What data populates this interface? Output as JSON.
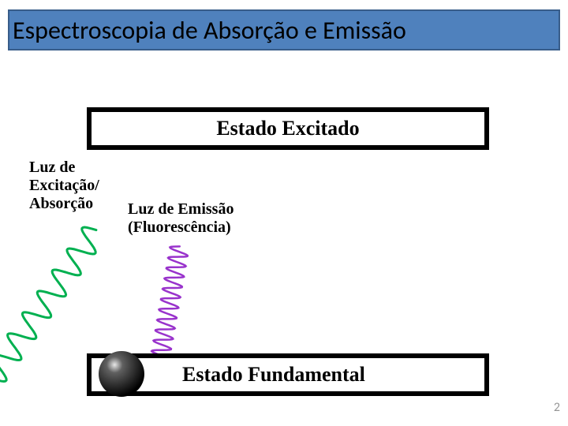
{
  "title": {
    "text": "Espectroscopia de Absorção e Emissão",
    "fontsize": 32,
    "color": "#000000",
    "bar_fill": "#4f81bd",
    "bar_border": "#385d8a"
  },
  "excited_state": {
    "label": "Estado Excitado",
    "fontsize": 26,
    "border_color": "#000000",
    "fill": "#ffffff"
  },
  "ground_state": {
    "label": "Estado Fundamental",
    "fontsize": 26,
    "border_color": "#000000",
    "fill": "#ffffff"
  },
  "excitation": {
    "line1": "Luz de",
    "line2": "Excitação/",
    "line3": "Absorção",
    "fontsize": 20,
    "wave_color": "#00b050",
    "wave_stroke_width": 3,
    "wave_cycles": 7
  },
  "emission": {
    "line1": "Luz de Emissão",
    "line2": "(Fluorescência)",
    "fontsize": 20,
    "wave_color": "#9933cc",
    "wave_stroke_width": 2.5,
    "wave_cycles": 12
  },
  "sphere": {
    "colors": [
      "#606060",
      "#000000"
    ],
    "highlight": "#e8e8e8"
  },
  "page_number": {
    "value": "2",
    "fontsize": 16,
    "color": "#969696"
  },
  "background": "#ffffff"
}
